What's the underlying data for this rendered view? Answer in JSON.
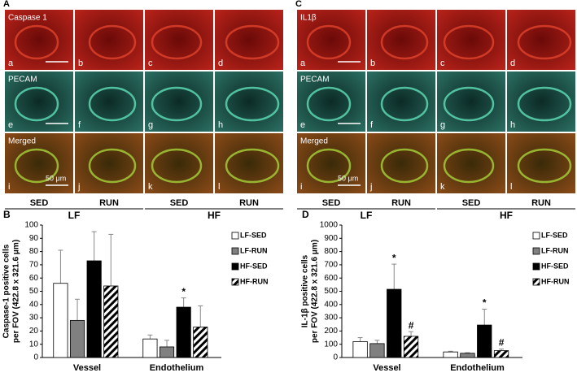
{
  "image_panels": [
    {
      "letter": "A",
      "rows": [
        {
          "stain": "Caspase 1",
          "tiles": [
            "a",
            "b",
            "c",
            "d"
          ]
        },
        {
          "stain": "PECAM",
          "tiles": [
            "e",
            "f",
            "g",
            "h"
          ]
        },
        {
          "stain": "Merged",
          "tiles": [
            "i",
            "j",
            "k",
            "l"
          ]
        }
      ],
      "scale_label": "50 μm",
      "groups": [
        {
          "label": "LF",
          "conditions": [
            "SED",
            "RUN"
          ]
        },
        {
          "label": "HF",
          "conditions": [
            "SED",
            "RUN"
          ]
        }
      ]
    },
    {
      "letter": "C",
      "rows": [
        {
          "stain": "IL1β",
          "tiles": [
            "a",
            "b",
            "c",
            "d"
          ]
        },
        {
          "stain": "PECAM",
          "tiles": [
            "e",
            "f",
            "g",
            "h"
          ]
        },
        {
          "stain": "Merged",
          "tiles": [
            "i",
            "j",
            "k",
            "l"
          ]
        }
      ],
      "scale_label": "50 μm",
      "groups": [
        {
          "label": "LF",
          "conditions": [
            "SED",
            "RUN"
          ]
        },
        {
          "label": "HF",
          "conditions": [
            "SED",
            "RUN"
          ]
        }
      ]
    }
  ],
  "chart_data": [
    {
      "type": "bar",
      "letter": "B",
      "ylabel": [
        "Caspase-1 positive cells",
        "per FOV (422.8 x 321.6 μm)"
      ],
      "categories": [
        "Vessel",
        "Endothelium"
      ],
      "ylim": [
        0,
        100
      ],
      "yticks": [
        0,
        10,
        20,
        30,
        40,
        50,
        60,
        70,
        80,
        90,
        100
      ],
      "series": [
        {
          "name": "LF-SED",
          "color": "#ffffff",
          "values": [
            56,
            14
          ],
          "errors": [
            25,
            3
          ]
        },
        {
          "name": "LF-RUN",
          "color": "#808080",
          "values": [
            28,
            8
          ],
          "errors": [
            16,
            5
          ]
        },
        {
          "name": "HF-SED",
          "color": "#000000",
          "values": [
            73,
            38
          ],
          "errors": [
            22,
            7
          ],
          "markers": [
            null,
            "*"
          ]
        },
        {
          "name": "HF-RUN",
          "color": "#000000",
          "hatch": true,
          "values": [
            54,
            23
          ],
          "errors": [
            39,
            16
          ]
        }
      ]
    },
    {
      "type": "bar",
      "letter": "D",
      "ylabel": [
        "IL-1β positive cells",
        "per FOV (422.8 x 321.6 μm)"
      ],
      "categories": [
        "Vessel",
        "Endothelium"
      ],
      "ylim": [
        0,
        1000
      ],
      "yticks": [
        0,
        100,
        200,
        300,
        400,
        500,
        600,
        700,
        800,
        900,
        1000
      ],
      "series": [
        {
          "name": "LF-SED",
          "color": "#ffffff",
          "values": [
            120,
            42
          ],
          "errors": [
            30,
            5
          ]
        },
        {
          "name": "LF-RUN",
          "color": "#808080",
          "values": [
            105,
            32
          ],
          "errors": [
            25,
            4
          ]
        },
        {
          "name": "HF-SED",
          "color": "#000000",
          "values": [
            515,
            245
          ],
          "errors": [
            190,
            120
          ],
          "markers": [
            "*",
            "*"
          ]
        },
        {
          "name": "HF-RUN",
          "color": "#000000",
          "hatch": true,
          "values": [
            160,
            52
          ],
          "errors": [
            35,
            12
          ],
          "markers": [
            "#",
            "#"
          ]
        }
      ]
    }
  ]
}
